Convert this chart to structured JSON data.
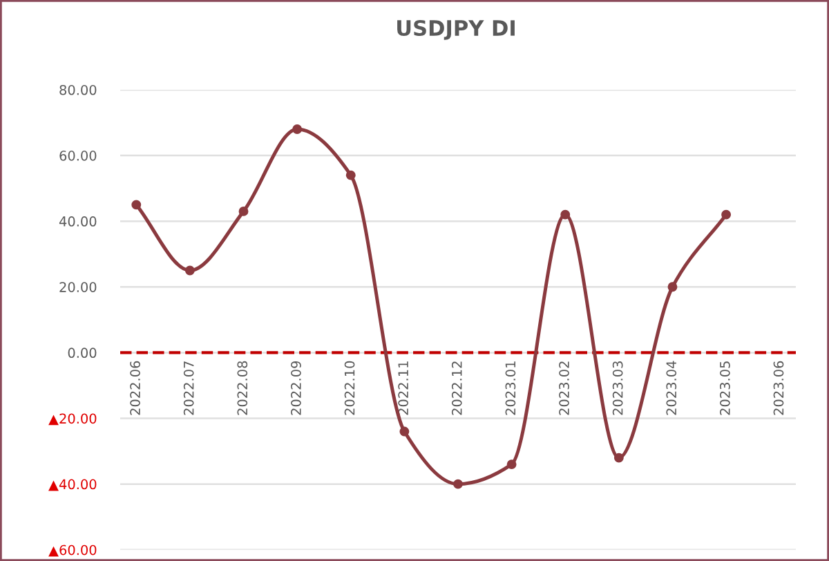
{
  "chart_data": {
    "type": "line",
    "title": "USDJPY DI",
    "categories": [
      "2022.06",
      "2022.07",
      "2022.08",
      "2022.09",
      "2022.10",
      "2022.11",
      "2022.12",
      "2023.01",
      "2023.02",
      "2023.03",
      "2023.04",
      "2023.05",
      "2023.06"
    ],
    "series": [
      {
        "color": "#8b3a3f",
        "values": [
          45,
          25,
          43,
          68,
          54,
          -24,
          -40,
          -34,
          42,
          -32,
          20,
          42,
          null
        ]
      }
    ],
    "ylim": [
      -60,
      80
    ],
    "yticks": [
      {
        "value": -60,
        "label": "▲60.00"
      },
      {
        "value": -40,
        "label": "▲40.00"
      },
      {
        "value": -20,
        "label": "▲20.00"
      },
      {
        "value": 0,
        "label": "0.00"
      },
      {
        "value": 20,
        "label": "20.00"
      },
      {
        "value": 40,
        "label": "40.00"
      },
      {
        "value": 60,
        "label": "60.00"
      },
      {
        "value": 80,
        "label": "80.00"
      }
    ],
    "ref_lines": [
      {
        "axis": "y",
        "value": 0,
        "color": "#c00000",
        "line_style": "dashed"
      }
    ],
    "grid": "y",
    "marker": "circle",
    "line_style": "solid"
  }
}
